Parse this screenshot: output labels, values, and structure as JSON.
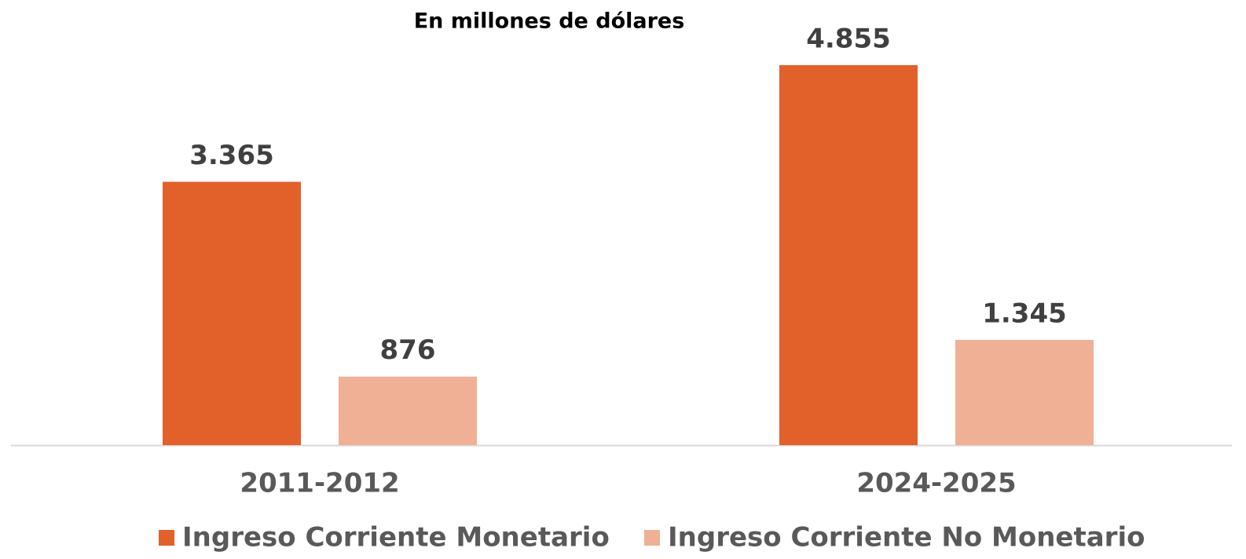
{
  "chart_data": {
    "type": "bar",
    "title": "En millones de dólares",
    "categories": [
      "2011-2012",
      "2024-2025"
    ],
    "series": [
      {
        "name": "Ingreso Corriente Monetario",
        "color": "#e2602a",
        "values": [
          3365,
          4855
        ],
        "value_labels": [
          "3.365",
          "4.855"
        ]
      },
      {
        "name": "Ingreso Corriente No Monetario",
        "color": "#f0b096",
        "values": [
          876,
          1345
        ],
        "value_labels": [
          "876",
          "1.345"
        ]
      }
    ],
    "legend": "bottom"
  }
}
